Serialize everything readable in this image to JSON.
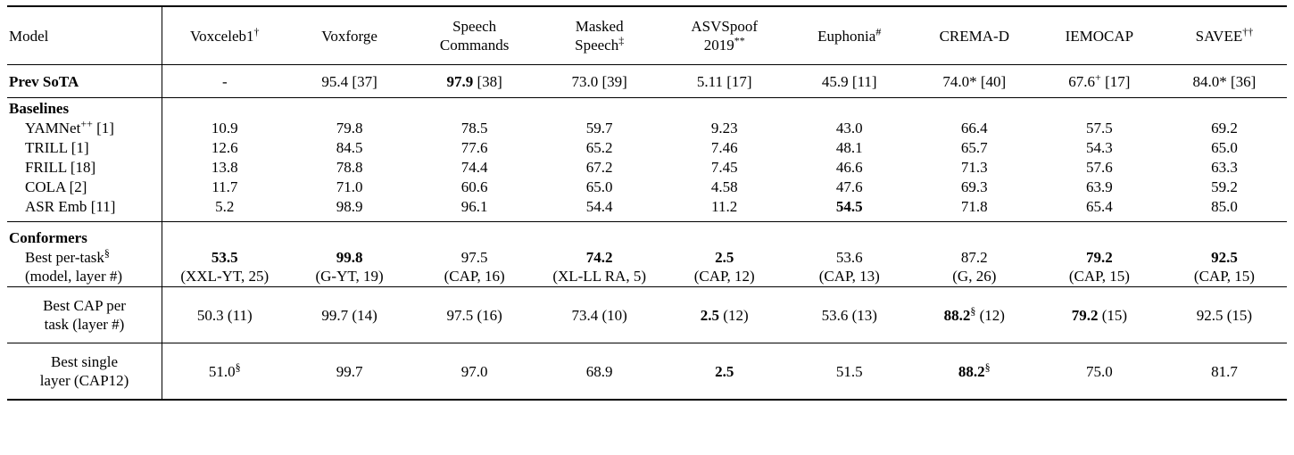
{
  "header": {
    "model": "Model",
    "columns": [
      {
        "lines": [
          "Voxceleb1"
        ],
        "sup": "†"
      },
      {
        "lines": [
          "Voxforge"
        ],
        "sup": ""
      },
      {
        "lines": [
          "Speech",
          "Commands"
        ],
        "sup": ""
      },
      {
        "lines": [
          "Masked",
          "Speech"
        ],
        "sup": "‡"
      },
      {
        "lines": [
          "ASVSpoof",
          "2019"
        ],
        "sup": "**"
      },
      {
        "lines": [
          "Euphonia"
        ],
        "sup": "#"
      },
      {
        "lines": [
          "CREMA-D"
        ],
        "sup": ""
      },
      {
        "lines": [
          "IEMOCAP"
        ],
        "sup": ""
      },
      {
        "lines": [
          "SAVEE"
        ],
        "sup": "††"
      }
    ]
  },
  "prev_sota": {
    "label": "Prev SoTA",
    "cells": [
      {
        "v": "-",
        "sup": "",
        "r": ""
      },
      {
        "v": "95.4",
        "sup": "",
        "r": "[37]"
      },
      {
        "v": "97.9",
        "sup": "",
        "r": "[38]",
        "bold": true
      },
      {
        "v": "73.0",
        "sup": "",
        "r": "[39]"
      },
      {
        "v": "5.11",
        "sup": "",
        "r": "[17]"
      },
      {
        "v": "45.9",
        "sup": "",
        "r": "[11]"
      },
      {
        "v": "74.0*",
        "sup": "",
        "r": "[40]"
      },
      {
        "v": "67.6",
        "sup": "+",
        "r": "[17]"
      },
      {
        "v": "84.0*",
        "sup": "",
        "r": "[36]"
      }
    ]
  },
  "baselines": {
    "label": "Baselines",
    "rows": [
      {
        "name": "YAMNet",
        "sup": "++",
        "ref": "[1]",
        "values": [
          "10.9",
          "79.8",
          "78.5",
          "59.7",
          "9.23",
          "43.0",
          "66.4",
          "57.5",
          "69.2"
        ]
      },
      {
        "name": "TRILL",
        "sup": "",
        "ref": "[1]",
        "values": [
          "12.6",
          "84.5",
          "77.6",
          "65.2",
          "7.46",
          "48.1",
          "65.7",
          "54.3",
          "65.0"
        ]
      },
      {
        "name": "FRILL",
        "sup": "",
        "ref": "[18]",
        "values": [
          "13.8",
          "78.8",
          "74.4",
          "67.2",
          "7.45",
          "46.6",
          "71.3",
          "57.6",
          "63.3"
        ]
      },
      {
        "name": "COLA",
        "sup": "",
        "ref": "[2]",
        "values": [
          "11.7",
          "71.0",
          "60.6",
          "65.0",
          "4.58",
          "47.6",
          "69.3",
          "63.9",
          "59.2"
        ]
      },
      {
        "name": "ASR Emb",
        "sup": "",
        "ref": "[11]",
        "values": [
          "5.2",
          "98.9",
          "96.1",
          "54.4",
          "11.2",
          "54.5",
          "71.8",
          "65.4",
          "85.0"
        ],
        "bold_index": 5
      }
    ]
  },
  "conformers": {
    "label": "Conformers",
    "best_per_task": {
      "line1": "Best per-task",
      "line1_sup": "§",
      "line2": "(model, layer #)",
      "cells": [
        {
          "v": "53.5",
          "m": "(XXL-YT, 25)",
          "bold": true
        },
        {
          "v": "99.8",
          "m": "(G-YT, 19)",
          "bold": true
        },
        {
          "v": "97.5",
          "m": "(CAP, 16)"
        },
        {
          "v": "74.2",
          "m": "(XL-LL RA, 5)",
          "bold": true
        },
        {
          "v": "2.5",
          "m": "(CAP, 12)",
          "bold": true
        },
        {
          "v": "53.6",
          "m": "(CAP, 13)"
        },
        {
          "v": "87.2",
          "m": "(G, 26)"
        },
        {
          "v": "79.2",
          "m": "(CAP, 15)",
          "bold": true
        },
        {
          "v": "92.5",
          "m": "(CAP, 15)",
          "bold": true
        }
      ]
    }
  },
  "best_cap": {
    "line1": "Best CAP per",
    "line2": "task (layer #)",
    "cells": [
      {
        "v": "50.3",
        "sup": "",
        "l": "(11)"
      },
      {
        "v": "99.7",
        "sup": "",
        "l": "(14)"
      },
      {
        "v": "97.5",
        "sup": "",
        "l": "(16)"
      },
      {
        "v": "73.4",
        "sup": "",
        "l": "(10)"
      },
      {
        "v": "2.5",
        "sup": "",
        "l": "(12)",
        "bold": true
      },
      {
        "v": "53.6",
        "sup": "",
        "l": "(13)"
      },
      {
        "v": "88.2",
        "sup": "§",
        "l": "(12)",
        "bold": true
      },
      {
        "v": "79.2",
        "sup": "",
        "l": "(15)",
        "bold": true
      },
      {
        "v": "92.5",
        "sup": "",
        "l": "(15)"
      }
    ]
  },
  "best_single": {
    "line1": "Best single",
    "line2": "layer (CAP12)",
    "cells": [
      {
        "v": "51.0",
        "sup": "§"
      },
      {
        "v": "99.7",
        "sup": ""
      },
      {
        "v": "97.0",
        "sup": ""
      },
      {
        "v": "68.9",
        "sup": ""
      },
      {
        "v": "2.5",
        "sup": "",
        "bold": true
      },
      {
        "v": "51.5",
        "sup": ""
      },
      {
        "v": "88.2",
        "sup": "§",
        "bold": true
      },
      {
        "v": "75.0",
        "sup": ""
      },
      {
        "v": "81.7",
        "sup": ""
      }
    ]
  }
}
